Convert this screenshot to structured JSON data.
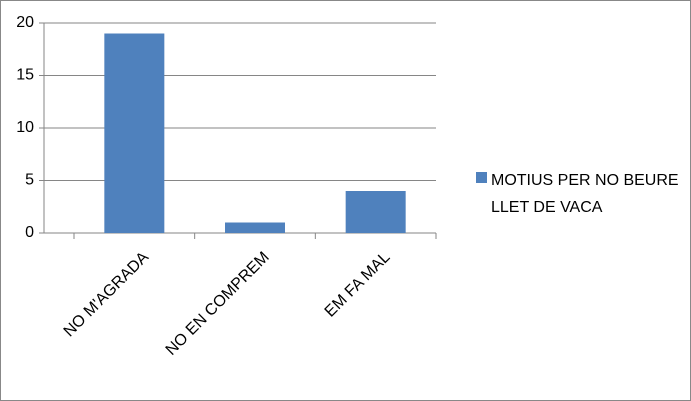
{
  "chart_data": {
    "type": "bar",
    "categories": [
      "NO M'AGRADA",
      "NO EN COMPREM",
      "EM FA MAL"
    ],
    "series": [
      {
        "name": "MOTIUS PER NO BEURE LLET DE VACA",
        "color": "#4f81bd",
        "values": [
          19,
          1,
          4
        ]
      }
    ],
    "ylim": [
      0,
      20
    ],
    "yticks": [
      0,
      5,
      10,
      15,
      20
    ],
    "grid": true,
    "legend": "right"
  }
}
